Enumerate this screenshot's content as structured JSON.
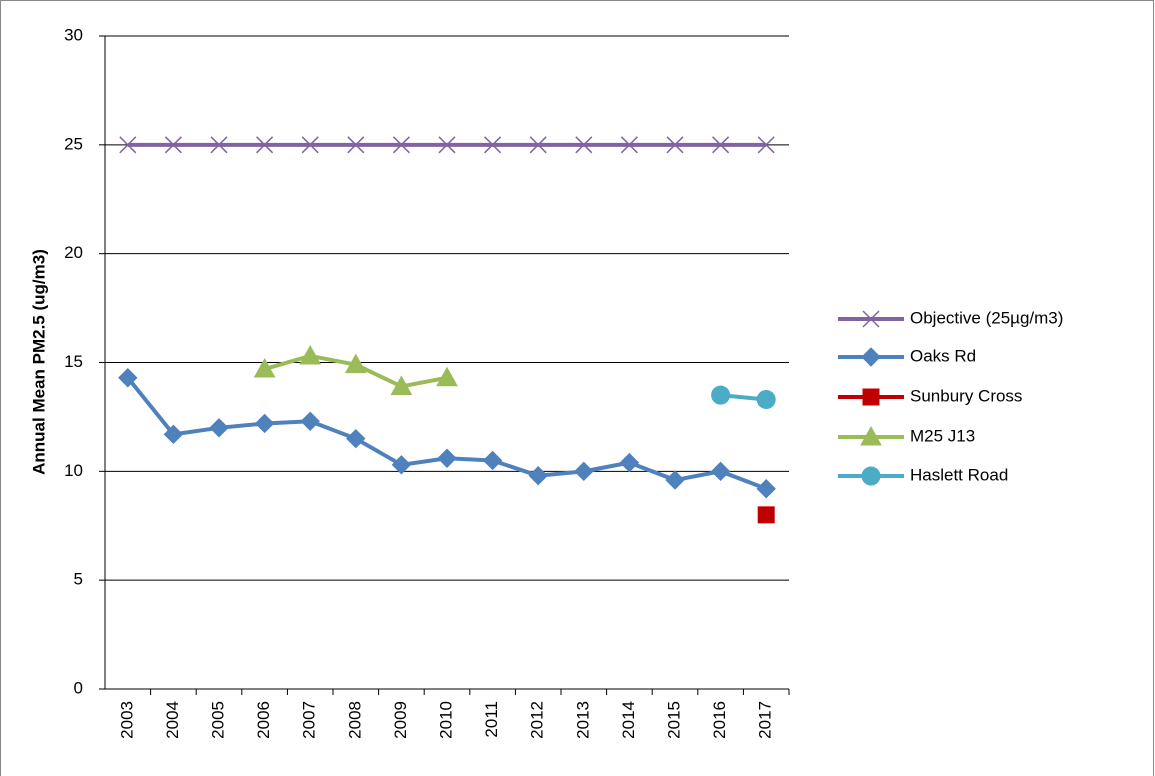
{
  "chart_data": {
    "type": "line",
    "y_label": "Annual Mean PM2.5 (ug/m3)",
    "categories": [
      "2003",
      "2004",
      "2005",
      "2006",
      "2007",
      "2008",
      "2009",
      "2010",
      "2011",
      "2012",
      "2013",
      "2014",
      "2015",
      "2016",
      "2017"
    ],
    "series": [
      {
        "name": "Objective (25µg/m3)",
        "color": "#8064a2",
        "marker": "x",
        "values": [
          25,
          25,
          25,
          25,
          25,
          25,
          25,
          25,
          25,
          25,
          25,
          25,
          25,
          25,
          25
        ]
      },
      {
        "name": "Oaks Rd",
        "color": "#4f81bd",
        "marker": "diamond",
        "values": [
          14.3,
          11.7,
          12.0,
          12.2,
          12.3,
          11.5,
          10.3,
          10.6,
          10.5,
          9.8,
          10.0,
          10.4,
          9.6,
          10.0,
          9.2
        ]
      },
      {
        "name": "Sunbury Cross",
        "color": "#c00000",
        "marker": "square",
        "values": [
          null,
          null,
          null,
          null,
          null,
          null,
          null,
          null,
          null,
          null,
          null,
          null,
          null,
          null,
          8.0
        ]
      },
      {
        "name": "M25 J13",
        "color": "#9bbb59",
        "marker": "triangle",
        "values": [
          null,
          null,
          null,
          14.7,
          15.3,
          14.9,
          13.9,
          14.3,
          null,
          null,
          null,
          null,
          null,
          null,
          null
        ]
      },
      {
        "name": "Haslett Road",
        "color": "#4bacc6",
        "marker": "circle",
        "values": [
          null,
          null,
          null,
          null,
          null,
          null,
          null,
          null,
          null,
          null,
          null,
          null,
          null,
          13.5,
          13.3
        ]
      }
    ],
    "ylim": [
      0,
      30
    ],
    "yticks": [
      0,
      5,
      10,
      15,
      20,
      25,
      30
    ],
    "grid": true,
    "legend": "right"
  }
}
